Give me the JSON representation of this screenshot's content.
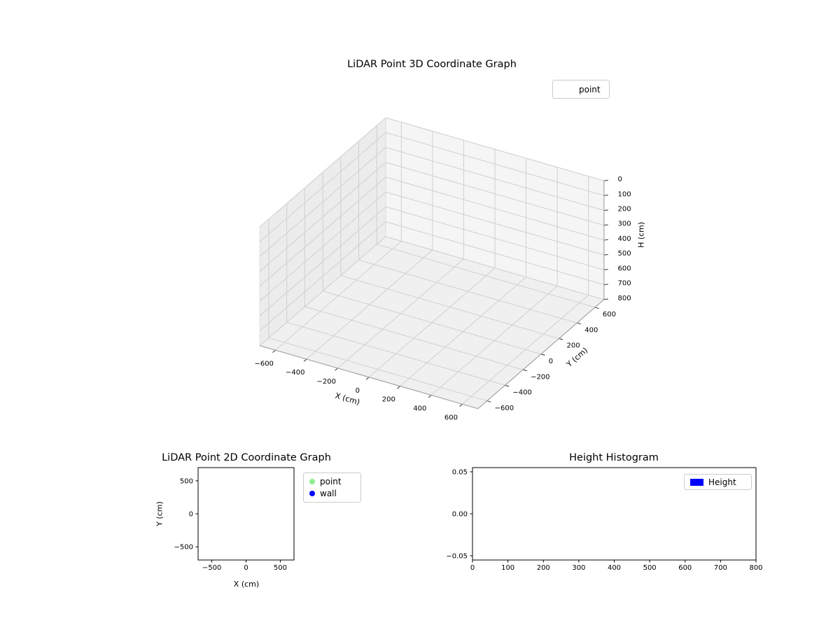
{
  "figure": {
    "background": "#ffffff"
  },
  "chart_data": [
    {
      "id": "lidar-3d",
      "type": "scatter3d",
      "title": "LiDAR Point 3D Coordinate Graph",
      "xlabel": "X (cm)",
      "ylabel": "Y (cm)",
      "zlabel": "H (cm)",
      "xlim": [
        -700,
        700
      ],
      "ylim": [
        -700,
        700
      ],
      "zlim": [
        0,
        800
      ],
      "z_axis_inverted": true,
      "grid": true,
      "xticks": {
        "values": [
          -600,
          -400,
          -200,
          0,
          200,
          400,
          600
        ],
        "labels": [
          "−600",
          "−400",
          "−200",
          "0",
          "200",
          "400",
          "600"
        ]
      },
      "yticks": {
        "values": [
          -600,
          -400,
          -200,
          0,
          200,
          400,
          600
        ],
        "labels": [
          "−600",
          "−400",
          "−200",
          "0",
          "200",
          "400",
          "600"
        ]
      },
      "zticks": {
        "values": [
          0,
          100,
          200,
          300,
          400,
          500,
          600,
          700,
          800
        ],
        "labels": [
          "0",
          "100",
          "200",
          "300",
          "400",
          "500",
          "600",
          "700",
          "800"
        ]
      },
      "legend": {
        "position": "upper right",
        "entries": [
          {
            "label": "point",
            "marker": "none"
          }
        ]
      },
      "series": [
        {
          "name": "point",
          "points": []
        }
      ]
    },
    {
      "id": "lidar-2d",
      "type": "scatter",
      "title": "LiDAR Point 2D Coordinate Graph",
      "xlabel": "X (cm)",
      "ylabel": "Y (cm)",
      "xlim": [
        -700,
        700
      ],
      "ylim": [
        -700,
        700
      ],
      "grid": false,
      "xticks": {
        "values": [
          -500,
          0,
          500
        ],
        "labels": [
          "−500",
          "0",
          "500"
        ]
      },
      "yticks": {
        "values": [
          -500,
          0,
          500
        ],
        "labels": [
          "−500",
          "0",
          "500"
        ]
      },
      "legend": {
        "position": "outside-right",
        "entries": [
          {
            "label": "point",
            "marker": "circle",
            "color": "#90ee90"
          },
          {
            "label": "wall",
            "marker": "circle",
            "color": "#0000ff"
          }
        ]
      },
      "series": [
        {
          "name": "point",
          "points": []
        },
        {
          "name": "wall",
          "points": []
        }
      ]
    },
    {
      "id": "height-histogram",
      "type": "bar",
      "title": "Height Histogram",
      "xlabel": "",
      "ylabel": "",
      "xlim": [
        0,
        800
      ],
      "ylim": [
        -0.055,
        0.055
      ],
      "grid": false,
      "xticks": {
        "values": [
          0,
          100,
          200,
          300,
          400,
          500,
          600,
          700,
          800
        ],
        "labels": [
          "0",
          "100",
          "200",
          "300",
          "400",
          "500",
          "600",
          "700",
          "800"
        ]
      },
      "yticks": {
        "values": [
          -0.05,
          0.0,
          0.05
        ],
        "labels": [
          "−0.05",
          "0.00",
          "0.05"
        ]
      },
      "legend": {
        "position": "upper right",
        "entries": [
          {
            "label": "Height",
            "marker": "patch",
            "color": "#0000ff"
          }
        ]
      },
      "values": []
    }
  ]
}
